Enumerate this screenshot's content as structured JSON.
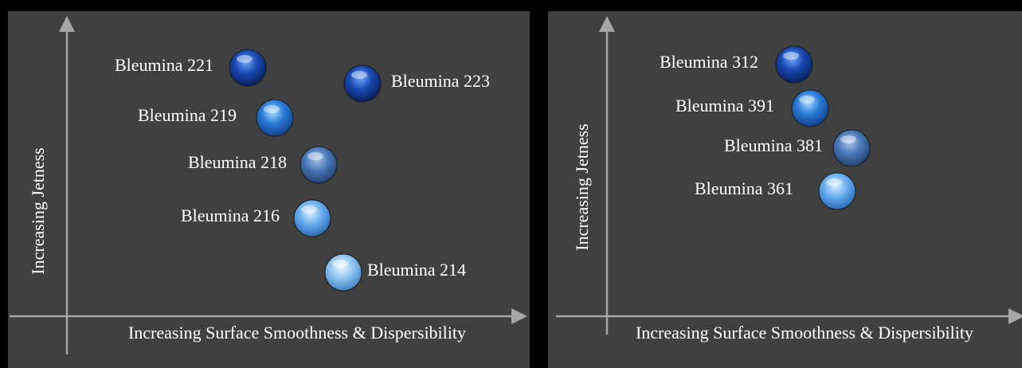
{
  "panels": [
    {
      "x_axis_label": "Increasing Surface Smoothness & Dispersibility",
      "y_axis_label": "Increasing Jetness",
      "nodes": [
        {
          "label": "Bleumina 221"
        },
        {
          "label": "Bleumina 223"
        },
        {
          "label": "Bleumina 219"
        },
        {
          "label": "Bleumina 218"
        },
        {
          "label": "Bleumina 216"
        },
        {
          "label": "Bleumina 214"
        }
      ]
    },
    {
      "x_axis_label": "Increasing Surface Smoothness & Dispersibility",
      "y_axis_label": "Increasing Jetness",
      "nodes": [
        {
          "label": "Bleumina 312"
        },
        {
          "label": "Bleumina 391"
        },
        {
          "label": "Bleumina 381"
        },
        {
          "label": "Bleumina 361"
        }
      ]
    }
  ]
}
